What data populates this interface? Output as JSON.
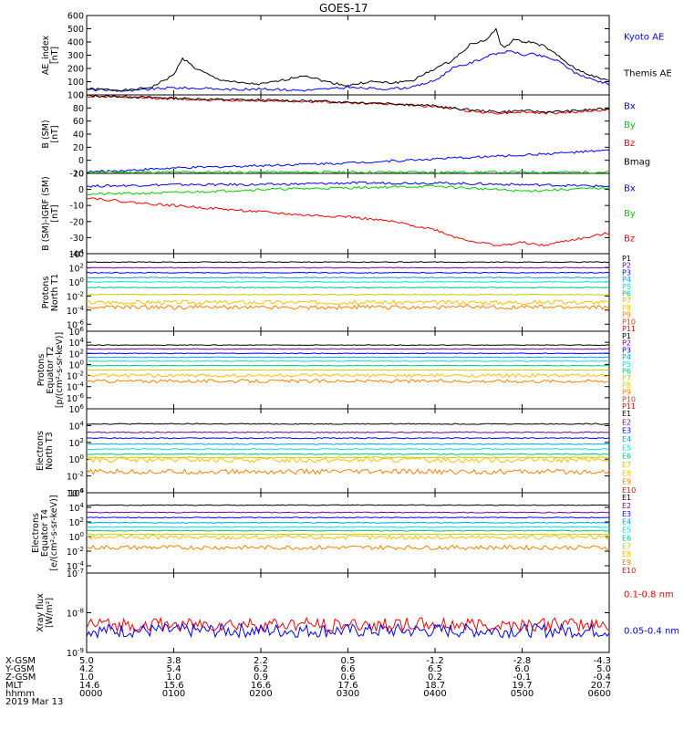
{
  "title": "GOES-17",
  "chart_data": [
    {
      "type": "line",
      "panel": "ae",
      "ylabel": [
        "AE_index",
        "[nT]"
      ],
      "ylim": [
        0,
        600
      ],
      "yticks": [
        "600",
        "500",
        "400",
        "300",
        "200",
        "100",
        "0"
      ],
      "series": [
        {
          "name": "Kyoto AE",
          "color": "#0000ff",
          "x": [
            0,
            0.25,
            0.5,
            0.75,
            1,
            1.25,
            1.5,
            1.75,
            2,
            2.25,
            2.5,
            2.75,
            3,
            3.25,
            3.5,
            3.75,
            4,
            4.2,
            4.4,
            4.6,
            4.75,
            4.9,
            5,
            5.1,
            5.25,
            5.4,
            5.5,
            5.6,
            5.75,
            5.9,
            6
          ],
          "y": [
            40,
            35,
            30,
            45,
            55,
            50,
            45,
            40,
            45,
            40,
            35,
            45,
            55,
            50,
            45,
            60,
            110,
            200,
            240,
            290,
            320,
            330,
            300,
            310,
            290,
            260,
            220,
            170,
            130,
            100,
            80
          ]
        },
        {
          "name": "Themis AE",
          "color": "#000000",
          "x": [
            0,
            0.25,
            0.5,
            0.75,
            1,
            1.1,
            1.25,
            1.5,
            1.75,
            2,
            2.25,
            2.5,
            2.75,
            3,
            3.25,
            3.5,
            3.75,
            4,
            4.2,
            4.4,
            4.6,
            4.7,
            4.75,
            4.8,
            4.9,
            5,
            5.1,
            5.25,
            5.4,
            5.5,
            5.6,
            5.75,
            5.9,
            6
          ],
          "y": [
            45,
            40,
            35,
            60,
            150,
            280,
            200,
            120,
            90,
            80,
            110,
            150,
            100,
            70,
            100,
            90,
            110,
            200,
            260,
            380,
            420,
            500,
            390,
            350,
            420,
            400,
            400,
            370,
            300,
            250,
            200,
            160,
            120,
            110
          ]
        }
      ],
      "legend": [
        "Kyoto AE",
        "Themis AE"
      ]
    },
    {
      "type": "line",
      "panel": "b_sm",
      "ylabel": [
        "B (SM)",
        "[nT]"
      ],
      "ylim": [
        -20,
        100
      ],
      "yticks": [
        "100",
        "80",
        "60",
        "40",
        "20",
        "0",
        "-20"
      ],
      "series": [
        {
          "name": "Bx",
          "color": "#0000ff",
          "x": [
            0,
            1,
            2,
            3,
            4,
            5,
            6
          ],
          "y": [
            -18,
            -12,
            -8,
            -4,
            2,
            8,
            15
          ]
        },
        {
          "name": "By",
          "color": "#00cc00",
          "x": [
            0,
            1,
            2,
            3,
            4,
            5,
            6
          ],
          "y": [
            -18,
            -18,
            -18,
            -18,
            -18,
            -18,
            -18
          ]
        },
        {
          "name": "Bz",
          "color": "#ff0000",
          "x": [
            0,
            0.5,
            1,
            1.5,
            2,
            2.5,
            3,
            3.5,
            4,
            4.25,
            4.5,
            4.75,
            5,
            5.25,
            5.5,
            5.75,
            6
          ],
          "y": [
            98,
            96,
            94,
            92,
            91,
            90,
            88,
            86,
            82,
            78,
            74,
            72,
            74,
            72,
            73,
            75,
            77
          ]
        },
        {
          "name": "Bmag",
          "color": "#000000",
          "x": [
            0,
            0.5,
            1,
            1.5,
            2,
            2.5,
            3,
            3.5,
            4,
            4.25,
            4.5,
            4.75,
            5,
            5.25,
            5.5,
            5.75,
            6
          ],
          "y": [
            99,
            97,
            95,
            93,
            92,
            91,
            89,
            87,
            83,
            79,
            76,
            74,
            76,
            74,
            75,
            77,
            79
          ]
        }
      ],
      "legend": [
        "Bx",
        "By",
        "Bz",
        "Bmag"
      ]
    },
    {
      "type": "line",
      "panel": "b_sm_igrf",
      "ylabel": [
        "B (SM)-IGRF (SM)",
        "[nT]"
      ],
      "ylim": [
        -40,
        10
      ],
      "yticks": [
        "10",
        "0",
        "-10",
        "-20",
        "-30",
        "-40"
      ],
      "series": [
        {
          "name": "Bx",
          "color": "#0000ff",
          "x": [
            0,
            1,
            2,
            3,
            4,
            5,
            6
          ],
          "y": [
            2,
            3,
            3,
            4,
            4,
            3,
            2
          ]
        },
        {
          "name": "By",
          "color": "#00cc00",
          "x": [
            0,
            1,
            2,
            3,
            4,
            5,
            6
          ],
          "y": [
            -3,
            -2,
            0,
            1,
            2,
            -1,
            1
          ]
        },
        {
          "name": "Bz",
          "color": "#ff0000",
          "x": [
            0,
            0.5,
            1,
            1.5,
            2,
            2.5,
            3,
            3.5,
            4,
            4.25,
            4.5,
            4.75,
            5,
            5.25,
            5.5,
            5.75,
            6
          ],
          "y": [
            -5,
            -8,
            -10,
            -12,
            -14,
            -16,
            -17,
            -20,
            -25,
            -30,
            -33,
            -35,
            -33,
            -35,
            -32,
            -30,
            -27
          ]
        }
      ],
      "legend": [
        "Bx",
        "By",
        "Bz"
      ]
    },
    {
      "type": "line",
      "panel": "protons_t1",
      "ylabel": [
        "Protons",
        "North T1"
      ],
      "log": true,
      "ylim_exp": [
        -7,
        4
      ],
      "yticks": [
        {
          "e": 4
        },
        {
          "e": 2
        },
        {
          "e": 0
        },
        {
          "e": -2
        },
        {
          "e": -4
        },
        {
          "e": -6
        }
      ],
      "legend": [
        "P1",
        "P2",
        "P3",
        "P4",
        "P5",
        "P6",
        "P7",
        "P8",
        "P9",
        "P10",
        "P11"
      ],
      "legend_colors": [
        "#000000",
        "#7000a0",
        "#0000ff",
        "#00a0ff",
        "#00e0e0",
        "#00c080",
        "#c0d000",
        "#ffc000",
        "#ff8000",
        "#ff3000",
        "#ff0000"
      ],
      "series_log": [
        2.8,
        2.0,
        1.3,
        0.6,
        0.0,
        -0.8,
        -1.8,
        -2.9,
        -3.6
      ]
    },
    {
      "type": "line",
      "panel": "protons_t2",
      "ylabel": [
        "Protons",
        "Equator T2",
        "[p/(cm²-s-sr-keV)]"
      ],
      "log": true,
      "ylim_exp": [
        -8,
        6
      ],
      "yticks": [
        {
          "e": 6
        },
        {
          "e": 4
        },
        {
          "e": 2
        },
        {
          "e": 0
        },
        {
          "e": -2
        },
        {
          "e": -4
        },
        {
          "e": -6
        }
      ],
      "legend": [
        "P1",
        "P2",
        "P3",
        "P4",
        "P5",
        "P6",
        "P7",
        "P8",
        "P9",
        "P10",
        "P11"
      ],
      "legend_colors": [
        "#000000",
        "#7000a0",
        "#0000ff",
        "#00a0ff",
        "#00e0e0",
        "#00c080",
        "#c0d000",
        "#ffc000",
        "#ff8000",
        "#ff3000",
        "#ff0000"
      ],
      "series_log": [
        3.5,
        2.8,
        2.0,
        1.3,
        0.6,
        -0.2,
        -1.0,
        -2.0,
        -3.0
      ]
    },
    {
      "type": "line",
      "panel": "electrons_t3",
      "ylabel": [
        "Electrons",
        "North T3"
      ],
      "log": true,
      "ylim_exp": [
        -4,
        6
      ],
      "yticks": [
        {
          "e": 6
        },
        {
          "e": 4
        },
        {
          "e": 2
        },
        {
          "e": 0
        },
        {
          "e": -2
        },
        {
          "e": -4
        }
      ],
      "legend": [
        "E1",
        "E2",
        "E3",
        "E4",
        "E5",
        "E6",
        "E7",
        "E8",
        "E9",
        "E10"
      ],
      "legend_colors": [
        "#000000",
        "#7000a0",
        "#0000ff",
        "#00a0ff",
        "#00e0e0",
        "#00c080",
        "#c0d000",
        "#ffc000",
        "#ff8000",
        "#ff0000"
      ],
      "series_log": [
        4.2,
        3.2,
        2.5,
        1.8,
        1.2,
        0.6,
        0.2,
        -0.1,
        -1.5
      ]
    },
    {
      "type": "line",
      "panel": "electrons_t4",
      "ylabel": [
        "Electrons",
        "Equator T4",
        "[e/(cm²-s-sr-keV)]"
      ],
      "log": true,
      "ylim_exp": [
        -5,
        6
      ],
      "yticks": [
        {
          "e": 6
        },
        {
          "e": 4
        },
        {
          "e": 2
        },
        {
          "e": 0
        },
        {
          "e": -2
        },
        {
          "e": -4
        }
      ],
      "legend": [
        "E1",
        "E2",
        "E3",
        "E4",
        "E5",
        "E6",
        "E7",
        "E8",
        "E9",
        "E10"
      ],
      "legend_colors": [
        "#000000",
        "#7000a0",
        "#0000ff",
        "#00a0ff",
        "#00e0e0",
        "#00c080",
        "#c0d000",
        "#ffc000",
        "#ff8000",
        "#ff0000"
      ],
      "series_log": [
        4.3,
        3.3,
        2.6,
        1.9,
        1.3,
        0.8,
        0.3,
        -0.1,
        -1.5
      ]
    },
    {
      "type": "line",
      "panel": "xray",
      "ylabel": [
        "Xray flux",
        "[W/m²]"
      ],
      "log": true,
      "ylim_exp": [
        -9,
        -7
      ],
      "yticks": [
        {
          "e": -7
        },
        {
          "e": -8
        },
        {
          "e": -9
        }
      ],
      "series": [
        {
          "name": "0.1-0.8 nm",
          "color": "#ff0000",
          "level": -8.3
        },
        {
          "name": "0.05-0.4 nm",
          "color": "#0000ff",
          "level": -8.45
        }
      ],
      "legend": [
        "0.1-0.8 nm",
        "0.05-0.4 nm"
      ]
    }
  ],
  "footer": {
    "xticks": [
      "0000",
      "0100",
      "0200",
      "0300",
      "0400",
      "0500",
      "0600"
    ],
    "rows": [
      {
        "label": "X-GSM",
        "values": [
          "5.0",
          "3.8",
          "2.2",
          "0.5",
          "-1.2",
          "-2.8",
          "-4.3"
        ]
      },
      {
        "label": "Y-GSM",
        "values": [
          "4.2",
          "5.4",
          "6.2",
          "6.6",
          "6.5",
          "6.0",
          "5.0"
        ]
      },
      {
        "label": "Z-GSM",
        "values": [
          "1.0",
          "1.0",
          "0.9",
          "0.6",
          "0.2",
          "-0.1",
          "-0.4"
        ]
      },
      {
        "label": "MLT",
        "values": [
          "14.6",
          "15.6",
          "16.6",
          "17.6",
          "18.7",
          "19.7",
          "20.7"
        ]
      },
      {
        "label": "hhmm",
        "values": [
          "0000",
          "0100",
          "0200",
          "0300",
          "0400",
          "0500",
          "0600"
        ]
      }
    ],
    "date": "2019 Mar 13"
  }
}
